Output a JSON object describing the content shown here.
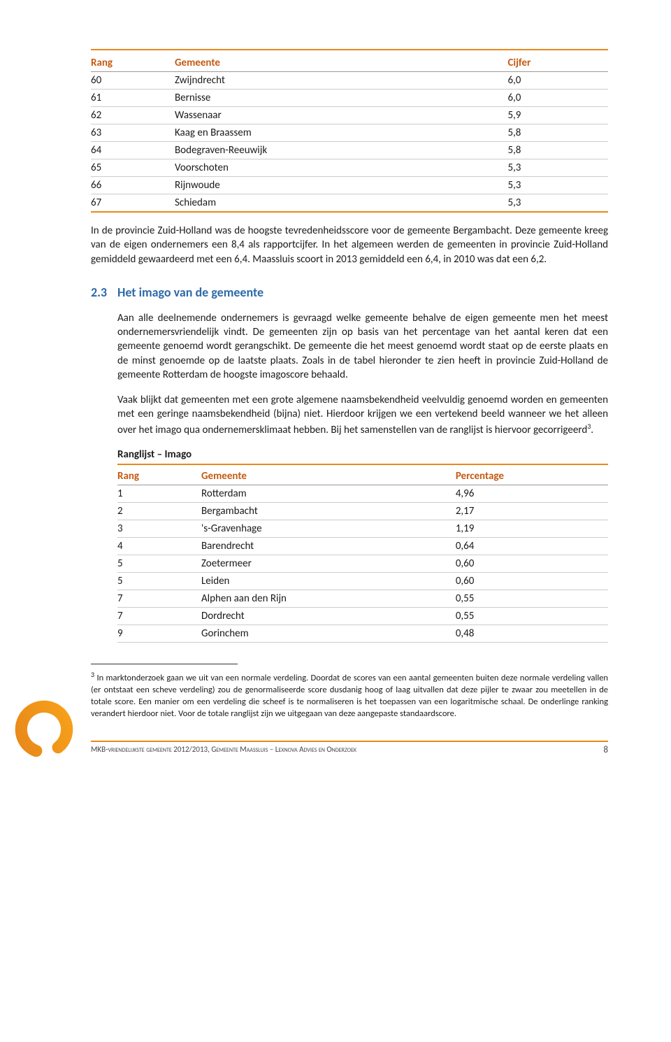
{
  "colors": {
    "accent_orange": "#e8881a",
    "header_text": "#c55a11",
    "section_blue": "#2e6aa8",
    "grid_light": "#cccccc",
    "grid_dark": "#999999"
  },
  "table1": {
    "columns": [
      "Rang",
      "Gemeente",
      "Cijfer"
    ],
    "rows": [
      [
        "60",
        "Zwijndrecht",
        "6,0"
      ],
      [
        "61",
        "Bernisse",
        "6,0"
      ],
      [
        "62",
        "Wassenaar",
        "5,9"
      ],
      [
        "63",
        "Kaag en Braassem",
        "5,8"
      ],
      [
        "64",
        "Bodegraven-Reeuwijk",
        "5,8"
      ],
      [
        "65",
        "Voorschoten",
        "5,3"
      ],
      [
        "66",
        "Rijnwoude",
        "5,3"
      ],
      [
        "67",
        "Schiedam",
        "5,3"
      ]
    ]
  },
  "para1": "In de provincie Zuid-Holland was de hoogste tevredenheidsscore voor de gemeente Bergambacht. Deze gemeente kreeg van de eigen ondernemers een 8,4 als rapportcijfer. In het algemeen werden de gemeenten in provincie Zuid-Holland gemiddeld gewaardeerd met een 6,4. Maassluis scoort in 2013 gemiddeld een 6,4, in 2010 was dat een 6,2.",
  "section": {
    "num": "2.3",
    "title": "Het imago van de gemeente"
  },
  "para2": "Aan alle deelnemende ondernemers is gevraagd welke gemeente behalve de eigen gemeente men het meest ondernemersvriendelijk vindt. De gemeenten zijn op basis van het percentage van het aantal keren dat een gemeente genoemd wordt gerangschikt. De gemeente die het meest genoemd wordt staat op de eerste plaats en de minst genoemde op de laatste plaats. Zoals in de tabel hieronder te zien heeft in provincie Zuid-Holland de gemeente Rotterdam de hoogste imagoscore behaald.",
  "para3_a": "Vaak blijkt dat gemeenten met een grote algemene naamsbekendheid veelvuldig genoemd worden en gemeenten met een geringe naamsbekendheid (bijna) niet. Hierdoor krijgen we een vertekend beeld wanneer we het alleen over het imago qua ondernemersklimaat hebben. Bij het samenstellen van de ranglijst is hiervoor gecorrigeerd",
  "para3_b": ".",
  "ranglijst_label": "Ranglijst – Imago",
  "table2": {
    "columns": [
      "Rang",
      "Gemeente",
      "Percentage"
    ],
    "rows": [
      [
        "1",
        "Rotterdam",
        "4,96"
      ],
      [
        "2",
        "Bergambacht",
        "2,17"
      ],
      [
        "3",
        "'s-Gravenhage",
        "1,19"
      ],
      [
        "4",
        "Barendrecht",
        "0,64"
      ],
      [
        "5",
        "Zoetermeer",
        "0,60"
      ],
      [
        "5",
        "Leiden",
        "0,60"
      ],
      [
        "7",
        "Alphen aan den Rijn",
        "0,55"
      ],
      [
        "7",
        "Dordrecht",
        "0,55"
      ],
      [
        "9",
        "Gorinchem",
        "0,48"
      ]
    ]
  },
  "footnote": {
    "marker": "3",
    "text": "In marktonderzoek gaan we uit van een normale verdeling. Doordat de scores van een aantal gemeenten buiten deze normale verdeling vallen (er ontstaat een scheve verdeling) zou de genormaliseerde score dusdanig hoog of laag uitvallen dat deze pijler te zwaar zou meetellen in de totale score. Een manier om een verdeling die scheef is te normaliseren is het toepassen van een logaritmische schaal. De onderlinge ranking verandert hierdoor niet. Voor de totale ranglijst zijn we uitgegaan van deze aangepaste standaardscore."
  },
  "footer": {
    "text_a": "MKB-vriendelijkste gemeente 2012/2013, Gemeente Maassluis – Lexnova Advies en Onderzoek",
    "page": "8"
  }
}
